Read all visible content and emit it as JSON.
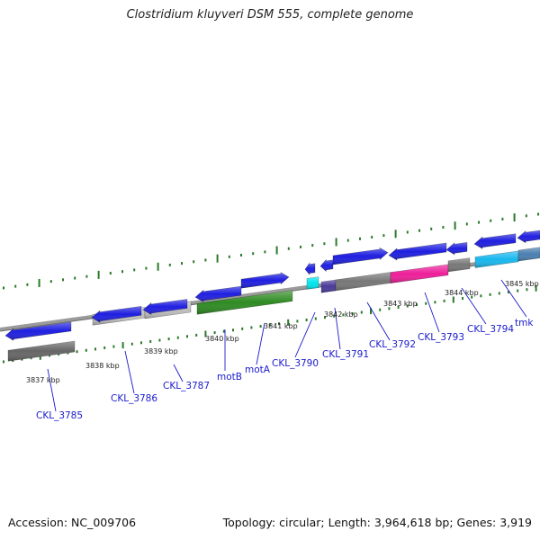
{
  "title": "Clostridium kluyveri DSM 555, complete genome",
  "footer": {
    "accession": "Accession: NC_009706",
    "summary": "Topology: circular; Length: 3,964,618 bp; Genes: 3,919"
  },
  "colors": {
    "cds": "#1f1fe0",
    "backbone": "#8c8c8c",
    "ticks": "#2a7a2a",
    "label": "#1a1acc"
  },
  "kbp_labels": [
    "3837 kbp",
    "3838 kbp",
    "3839 kbp",
    "3840 kbp",
    "3841 kbp",
    "3842 kbp",
    "3843 kbp",
    "3844 kbp",
    "3845 kbp"
  ],
  "genes": [
    {
      "label": "CKL_3785",
      "color": "#666666"
    },
    {
      "label": "CKL_3786",
      "color": "#bdbdbd"
    },
    {
      "label": "CKL_3787",
      "color": "#bdbdbd"
    },
    {
      "label": "motB",
      "color": "#2e8b22"
    },
    {
      "label": "motA",
      "color": "#2e8b22"
    },
    {
      "label": "CKL_3790",
      "color": "#00e5ee"
    },
    {
      "label": "CKL_3791",
      "color": "#4b3a9a"
    },
    {
      "label": "CKL_3792",
      "color": "#777777"
    },
    {
      "label": "CKL_3793",
      "color": "#ee1f9a"
    },
    {
      "label": "CKL_3794",
      "color": "#777777"
    },
    {
      "label": "tmk",
      "color": "#19b7ee"
    }
  ]
}
